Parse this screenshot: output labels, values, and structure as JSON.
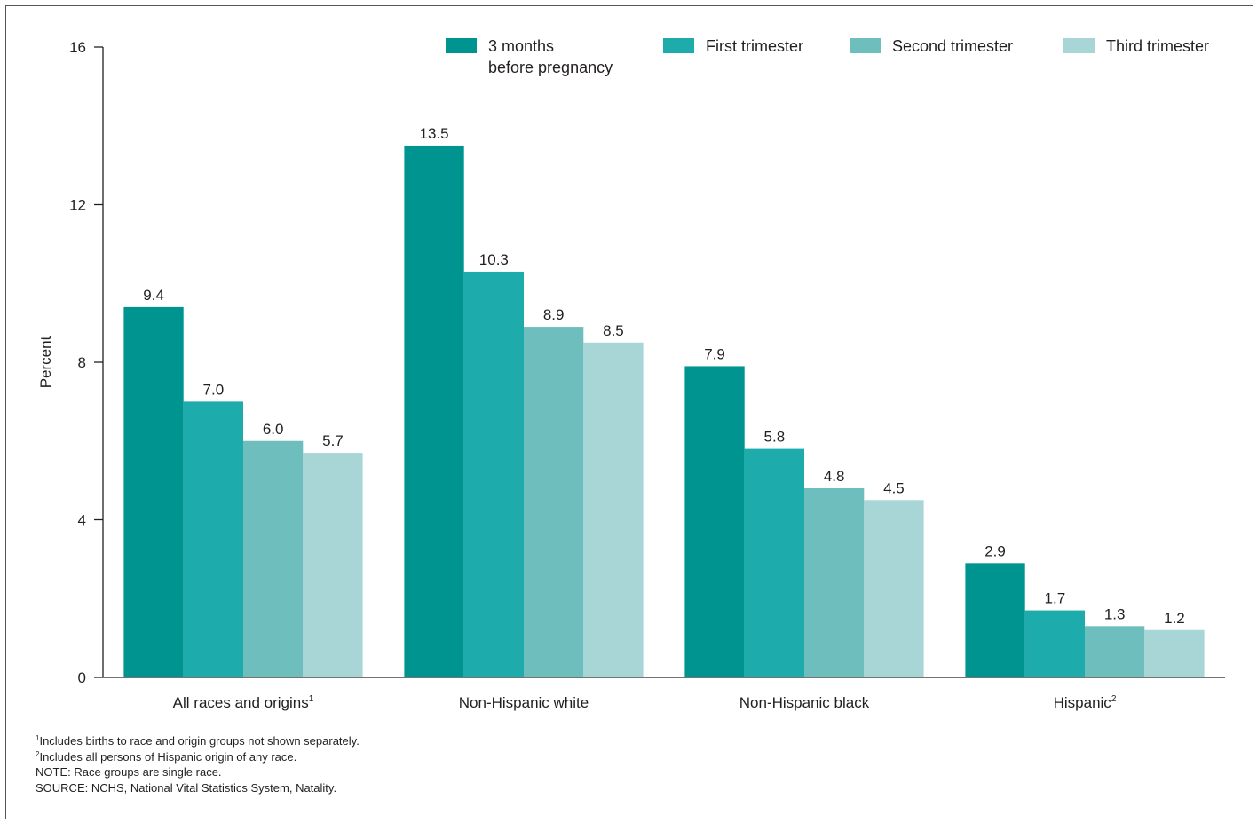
{
  "chart_data": {
    "type": "bar",
    "title": "",
    "xlabel": "",
    "ylabel": "Percent",
    "ylim": [
      0,
      16
    ],
    "yticks": [
      0,
      4,
      8,
      12,
      16
    ],
    "grid": false,
    "legend_position": "top-right",
    "categories": [
      {
        "label": "All races and origins",
        "sup": "1"
      },
      {
        "label": "Non-Hispanic white",
        "sup": ""
      },
      {
        "label": "Non-Hispanic black",
        "sup": ""
      },
      {
        "label": "Hispanic",
        "sup": "2"
      }
    ],
    "series": [
      {
        "name": "3 months before pregnancy",
        "legend_lines": [
          "3 months",
          "before pregnancy"
        ],
        "color": "#009490",
        "values": [
          9.4,
          13.5,
          7.9,
          2.9
        ]
      },
      {
        "name": "First trimester",
        "legend_lines": [
          "First trimester"
        ],
        "color": "#1eabab",
        "values": [
          7.0,
          10.3,
          5.8,
          1.7
        ]
      },
      {
        "name": "Second trimester",
        "legend_lines": [
          "Second trimester"
        ],
        "color": "#6fbebe",
        "values": [
          6.0,
          8.9,
          4.8,
          1.3
        ]
      },
      {
        "name": "Third trimester",
        "legend_lines": [
          "Third trimester"
        ],
        "color": "#a8d5d5",
        "values": [
          5.7,
          8.5,
          4.5,
          1.2
        ]
      }
    ],
    "value_labels": [
      [
        "9.4",
        "13.5",
        "7.9",
        "2.9"
      ],
      [
        "7.0",
        "10.3",
        "5.8",
        "1.7"
      ],
      [
        "6.0",
        "8.9",
        "4.8",
        "1.3"
      ],
      [
        "5.7",
        "8.5",
        "4.5",
        "1.2"
      ]
    ]
  },
  "footnotes": [
    {
      "sup": "1",
      "text": "Includes births to race and origin groups not shown separately."
    },
    {
      "sup": "2",
      "text": "Includes all persons of Hispanic origin of any race."
    },
    {
      "sup": "",
      "text": "NOTE: Race groups are single race."
    },
    {
      "sup": "",
      "text": "SOURCE: NCHS, National Vital Statistics System, Natality."
    }
  ]
}
